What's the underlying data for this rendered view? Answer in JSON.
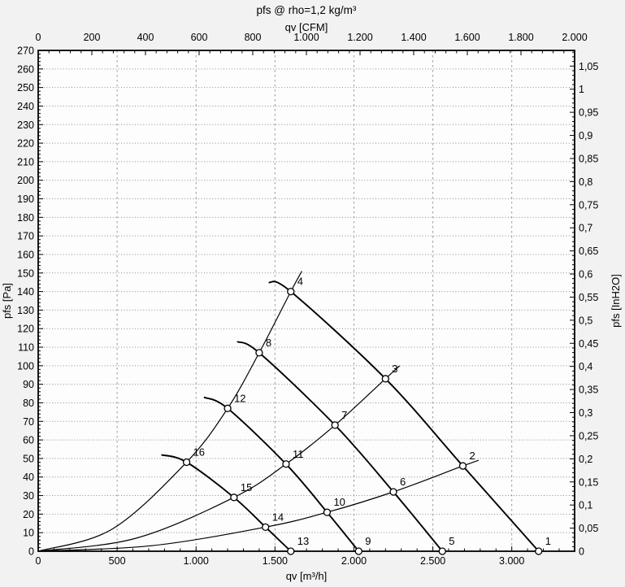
{
  "chart_data": {
    "type": "line",
    "title": "pfs @ rho=1,2 kg/m³",
    "grid": {
      "horizontal_step_pa": 10,
      "vertical_step_m3h": 500
    },
    "top_axis": {
      "label": "qv [CFM]",
      "unit": "CFM",
      "min": 0,
      "max": 2000,
      "major_step": 200,
      "minor_step": 40,
      "to_m3h_factor": 1.699005,
      "tick_labels": [
        "0",
        "200",
        "400",
        "600",
        "800",
        "1.000",
        "1.200",
        "1.400",
        "1.600",
        "1.800",
        "2.000"
      ]
    },
    "bottom_axis": {
      "label": "qv [m³/h]",
      "unit": "m³/h",
      "min": 0,
      "max": 3398,
      "major_step": 500,
      "minor_step": 100,
      "tick_labels": [
        "0",
        "500",
        "1.000",
        "1.500",
        "2.000",
        "2.500",
        "3.000"
      ]
    },
    "left_axis": {
      "label": "pfs [Pa]",
      "unit": "Pa",
      "min": 0,
      "max": 270,
      "major_step": 10,
      "minor_step": 2,
      "tick_labels": [
        "0",
        "10",
        "20",
        "30",
        "40",
        "50",
        "60",
        "70",
        "80",
        "90",
        "100",
        "110",
        "120",
        "130",
        "140",
        "150",
        "160",
        "170",
        "180",
        "190",
        "200",
        "210",
        "220",
        "230",
        "240",
        "250",
        "260",
        "270"
      ]
    },
    "right_axis": {
      "label": "pfs [InH2O]",
      "unit": "InH2O",
      "min": 0,
      "max": 1.05,
      "major_step": 0.05,
      "minor_step": 0.01,
      "to_pa_factor": 249.089,
      "tick_labels": [
        "0",
        "0,05",
        "0,1",
        "0,15",
        "0,2",
        "0,25",
        "0,3",
        "0,35",
        "0,4",
        "0,45",
        "0,5",
        "0,55",
        "0,6",
        "0,65",
        "0,7",
        "0,75",
        "0,8",
        "0,85",
        "0,9",
        "0,95",
        "1",
        "1,05"
      ]
    },
    "fan_curves": [
      {
        "name": "fan-curve-A",
        "points": [
          [
            1460,
            145
          ],
          [
            1600,
            140
          ],
          [
            2200,
            93
          ],
          [
            2690,
            46
          ],
          [
            3170,
            0
          ]
        ]
      },
      {
        "name": "fan-curve-B",
        "points": [
          [
            1260,
            113
          ],
          [
            1400,
            107
          ],
          [
            1880,
            68
          ],
          [
            2250,
            32
          ],
          [
            2560,
            0
          ]
        ]
      },
      {
        "name": "fan-curve-C",
        "points": [
          [
            1050,
            83
          ],
          [
            1200,
            77
          ],
          [
            1570,
            47
          ],
          [
            1830,
            21
          ],
          [
            2030,
            0
          ]
        ]
      },
      {
        "name": "fan-curve-D",
        "points": [
          [
            780,
            52
          ],
          [
            940,
            48
          ],
          [
            1240,
            29
          ],
          [
            1440,
            13
          ],
          [
            1600,
            0
          ]
        ]
      }
    ],
    "system_curves": [
      {
        "name": "system-curve-1",
        "points": [
          [
            0,
            0
          ],
          [
            470,
            12
          ],
          [
            940,
            48
          ],
          [
            1200,
            77
          ],
          [
            1400,
            107
          ],
          [
            1600,
            140
          ],
          [
            1670,
            151
          ]
        ]
      },
      {
        "name": "system-curve-2",
        "points": [
          [
            0,
            0
          ],
          [
            620,
            7
          ],
          [
            1240,
            29
          ],
          [
            1570,
            47
          ],
          [
            1880,
            68
          ],
          [
            2200,
            93
          ],
          [
            2290,
            100
          ]
        ]
      },
      {
        "name": "system-curve-3",
        "points": [
          [
            0,
            0
          ],
          [
            720,
            3
          ],
          [
            1440,
            13
          ],
          [
            1830,
            21
          ],
          [
            2250,
            32
          ],
          [
            2690,
            46
          ],
          [
            2790,
            49
          ]
        ]
      }
    ],
    "operating_points": [
      {
        "label": "1",
        "qv_m3h": 3170,
        "pfs_pa": 0
      },
      {
        "label": "2",
        "qv_m3h": 2690,
        "pfs_pa": 46
      },
      {
        "label": "3",
        "qv_m3h": 2200,
        "pfs_pa": 93
      },
      {
        "label": "4",
        "qv_m3h": 1600,
        "pfs_pa": 140
      },
      {
        "label": "5",
        "qv_m3h": 2560,
        "pfs_pa": 0
      },
      {
        "label": "6",
        "qv_m3h": 2250,
        "pfs_pa": 32
      },
      {
        "label": "7",
        "qv_m3h": 1880,
        "pfs_pa": 68
      },
      {
        "label": "8",
        "qv_m3h": 1400,
        "pfs_pa": 107
      },
      {
        "label": "9",
        "qv_m3h": 2030,
        "pfs_pa": 0
      },
      {
        "label": "10",
        "qv_m3h": 1830,
        "pfs_pa": 21
      },
      {
        "label": "11",
        "qv_m3h": 1570,
        "pfs_pa": 47
      },
      {
        "label": "12",
        "qv_m3h": 1200,
        "pfs_pa": 77
      },
      {
        "label": "13",
        "qv_m3h": 1600,
        "pfs_pa": 0
      },
      {
        "label": "14",
        "qv_m3h": 1440,
        "pfs_pa": 13
      },
      {
        "label": "15",
        "qv_m3h": 1240,
        "pfs_pa": 29
      },
      {
        "label": "16",
        "qv_m3h": 940,
        "pfs_pa": 48
      }
    ],
    "colors": {
      "curve": "#000000",
      "grid_horizontal": "#8c8c8c",
      "grid_vertical": "#9a9a9a",
      "axis": "#000000",
      "background": "#f2f2f2",
      "plot_background": "#fdfdfd",
      "marker_fill": "#ffffff"
    }
  }
}
